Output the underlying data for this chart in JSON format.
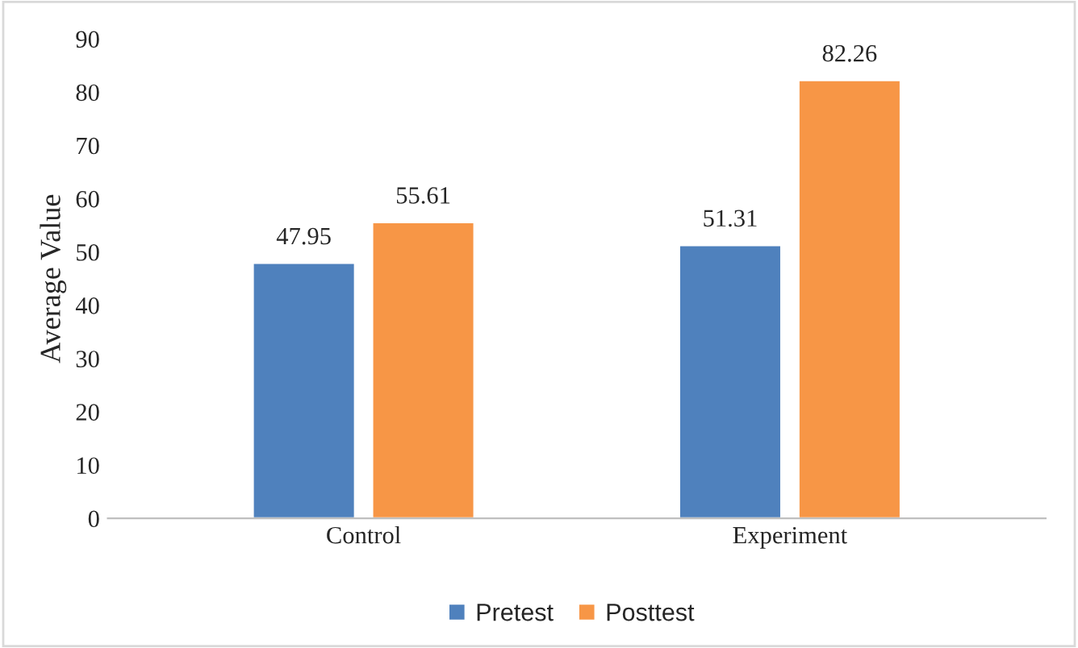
{
  "chart_data": {
    "type": "bar",
    "ylabel": "Average Value",
    "categories": [
      "Control",
      "Experiment"
    ],
    "series": [
      {
        "name": "Pretest",
        "color": "#4f81bd",
        "values": [
          47.95,
          51.31
        ]
      },
      {
        "name": "Posttest",
        "color": "#f79646",
        "values": [
          55.61,
          82.26
        ]
      }
    ],
    "ylim": [
      0,
      90
    ],
    "yticks": [
      0,
      10,
      20,
      30,
      40,
      50,
      60,
      70,
      80,
      90
    ],
    "data_labels": true,
    "legend": "bottom",
    "grid": false
  }
}
